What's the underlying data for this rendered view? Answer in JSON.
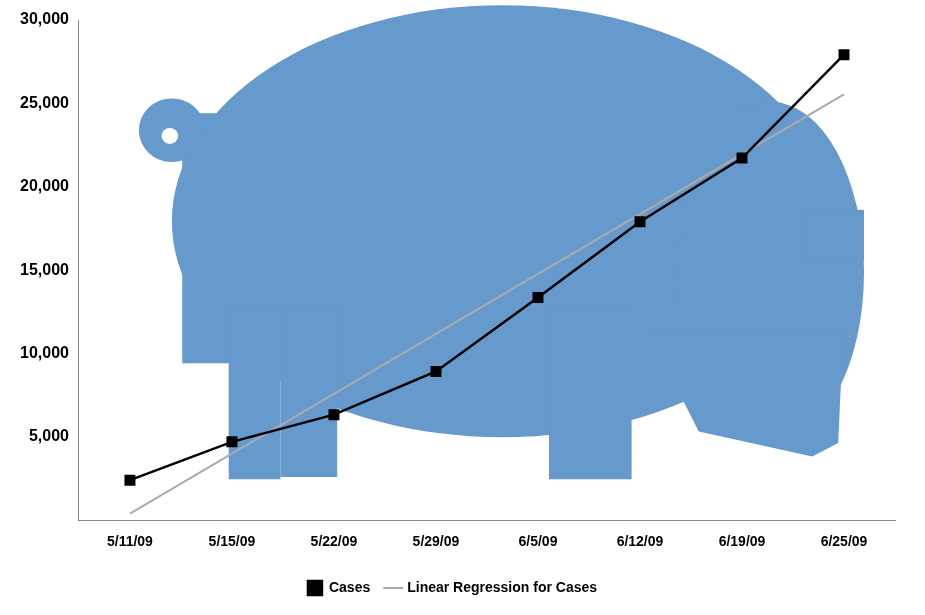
{
  "chart_data": {
    "type": "line",
    "categories": [
      "5/11/09",
      "5/15/09",
      "5/22/09",
      "5/29/09",
      "6/5/09",
      "6/12/09",
      "6/19/09",
      "6/25/09"
    ],
    "series": [
      {
        "name": "Cases",
        "color": "#000000",
        "marker": "square",
        "line_style": "solid",
        "values": [
          2400,
          4700,
          6330,
          8920,
          13350,
          17900,
          21720,
          27920
        ]
      },
      {
        "name": "Linear Regression for Cases",
        "color": "#aaaaaa",
        "marker": "none",
        "line_style": "solid",
        "values": [
          400,
          3990,
          7580,
          11170,
          14770,
          18360,
          21950,
          25540
        ]
      }
    ],
    "ylim": [
      0,
      30000
    ],
    "yticks": [
      {
        "value": 5000,
        "label": "5,000"
      },
      {
        "value": 10000,
        "label": "10,000"
      },
      {
        "value": 15000,
        "label": "15,000"
      },
      {
        "value": 20000,
        "label": "20,000"
      },
      {
        "value": 25000,
        "label": "25,000"
      },
      {
        "value": 30000,
        "label": "30,000"
      }
    ],
    "grid": false,
    "legend": "bottom"
  }
}
